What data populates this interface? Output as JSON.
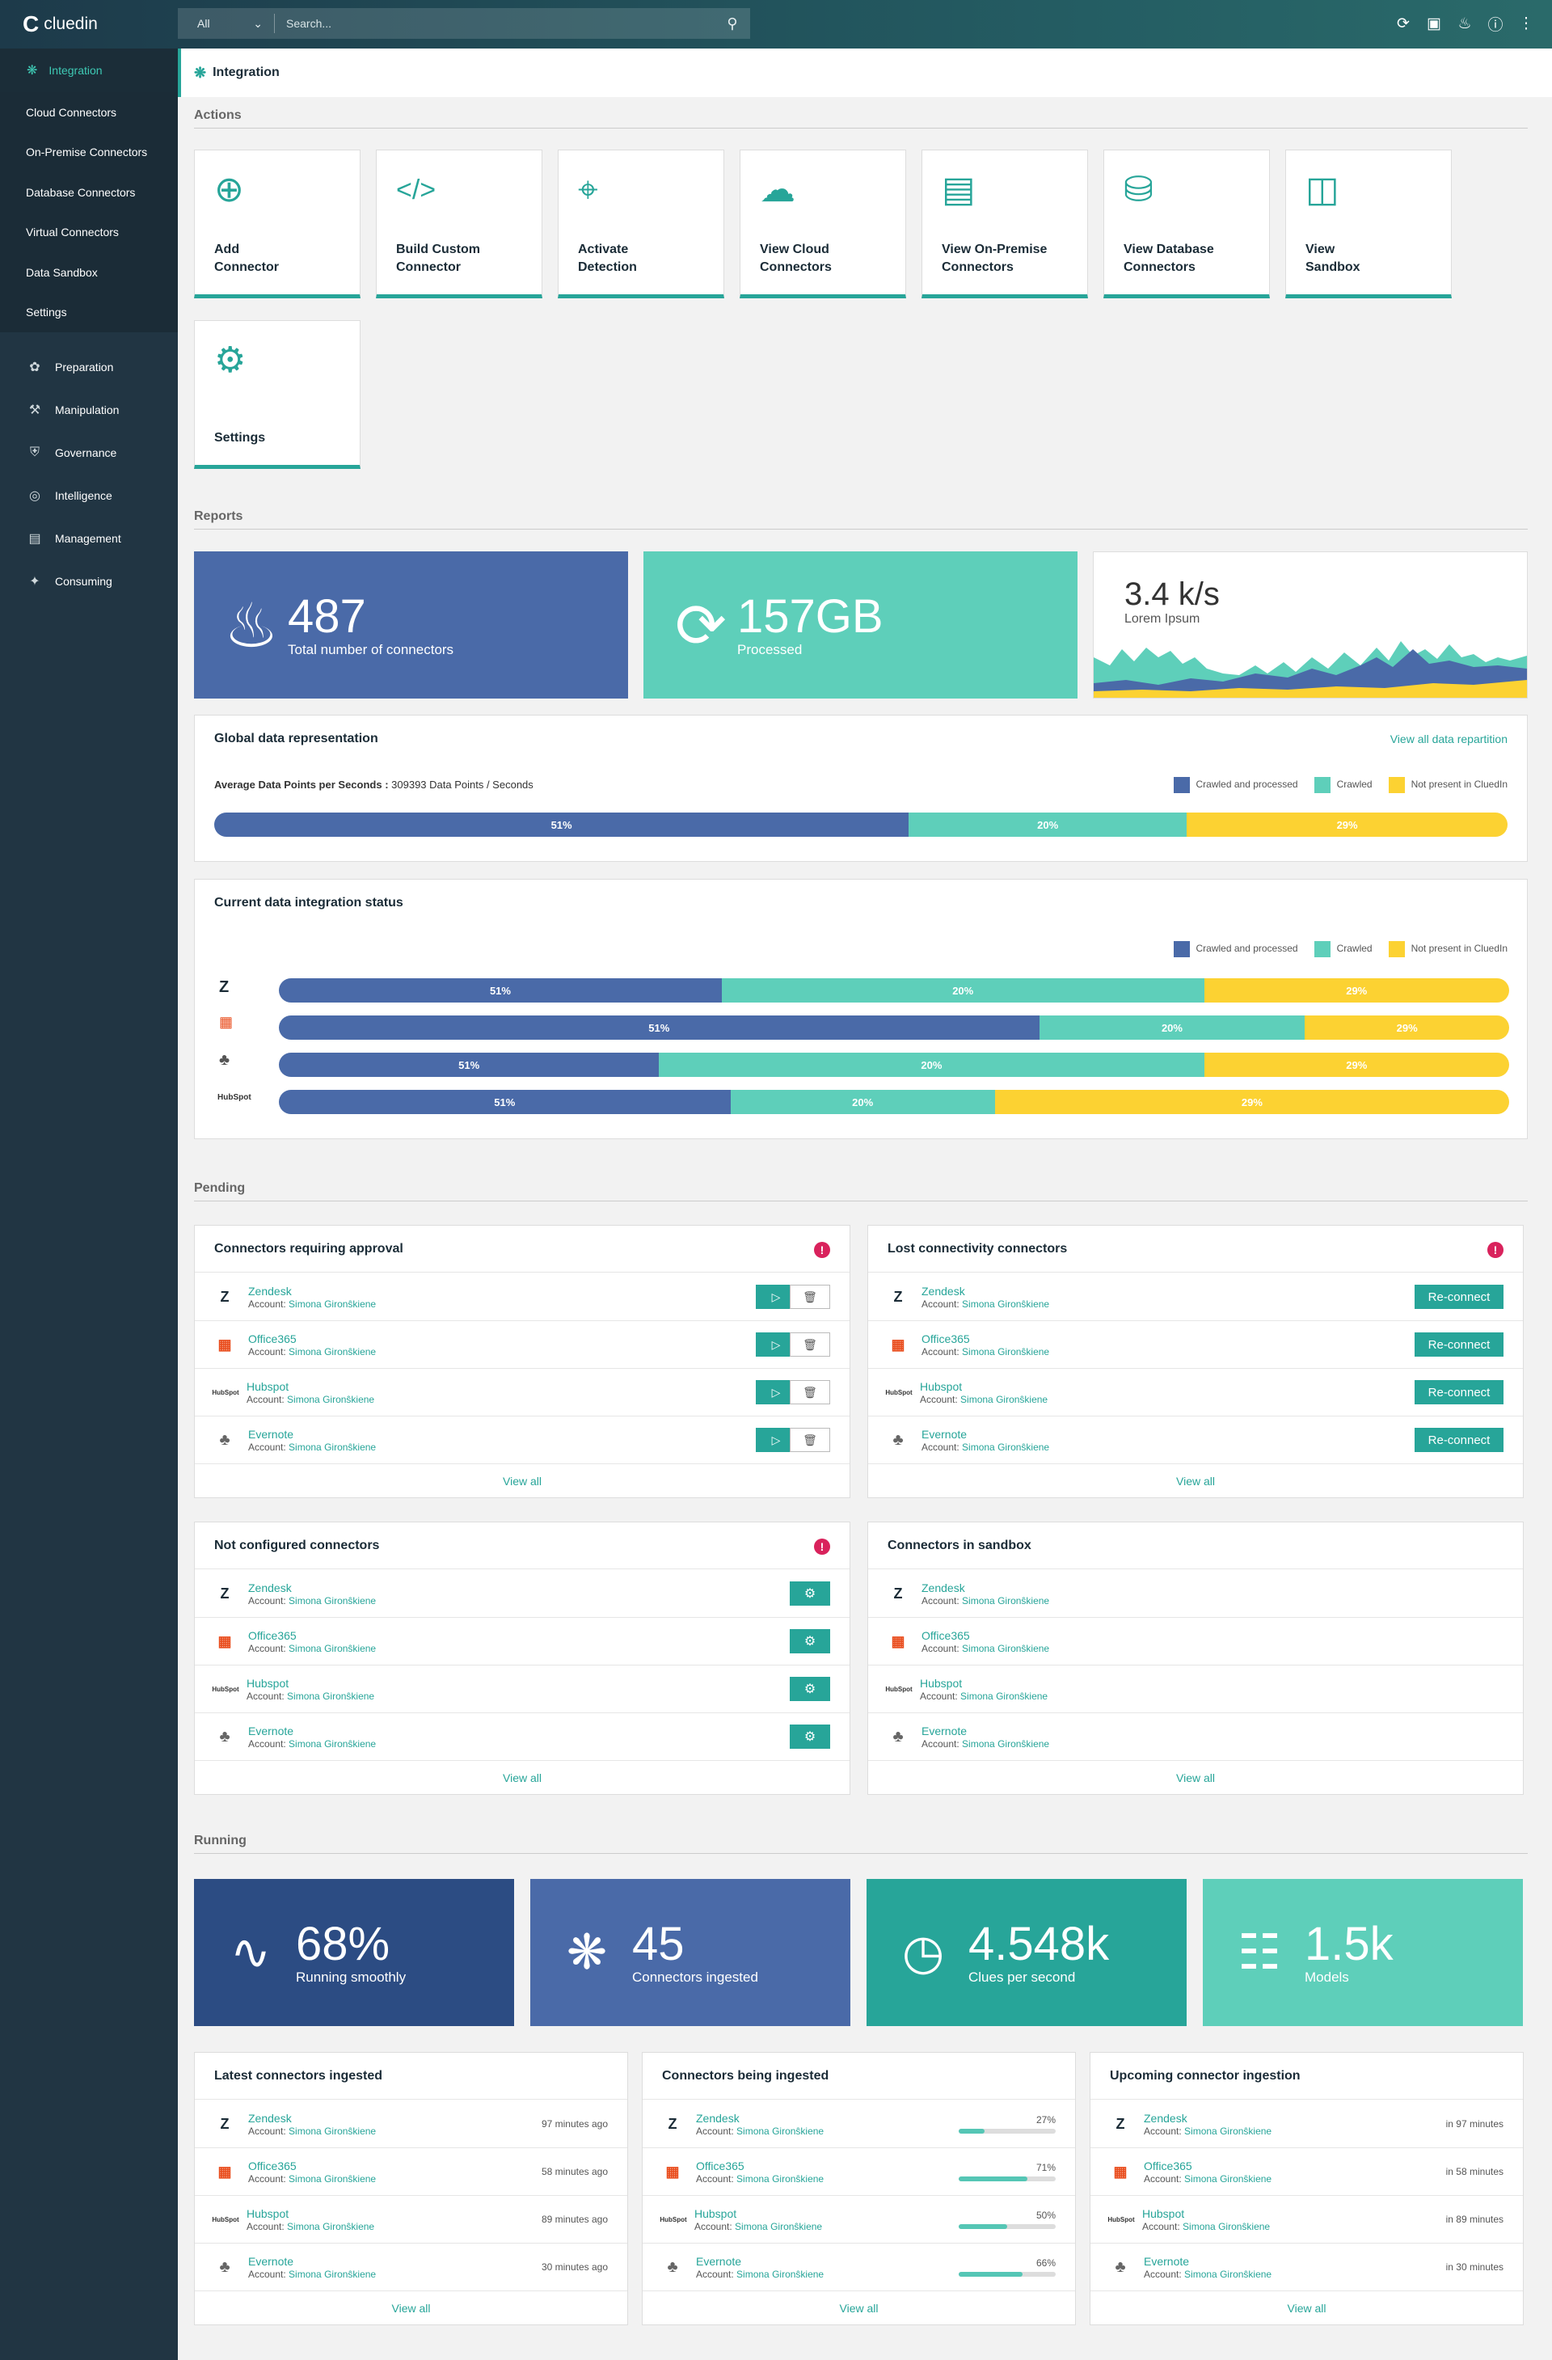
{
  "app": {
    "logo": "cluedin"
  },
  "search": {
    "scope": "All",
    "placeholder": "Search..."
  },
  "sidebar": {
    "active": "Integration",
    "sub": [
      "Cloud Connectors",
      "On-Premise Connectors",
      "Database Connectors",
      "Virtual Connectors",
      "Data Sandbox",
      "Settings"
    ],
    "items": [
      {
        "label": "Preparation",
        "icon": "preparation-icon"
      },
      {
        "label": "Manipulation",
        "icon": "manipulation-icon"
      },
      {
        "label": "Governance",
        "icon": "governance-icon"
      },
      {
        "label": "Intelligence",
        "icon": "intelligence-icon"
      },
      {
        "label": "Management",
        "icon": "management-icon"
      },
      {
        "label": "Consuming",
        "icon": "consuming-icon"
      }
    ]
  },
  "page": {
    "title": "Integration"
  },
  "sections": {
    "actions": "Actions",
    "reports": "Reports",
    "pending": "Pending",
    "running": "Running"
  },
  "actions": [
    {
      "l1": "Add",
      "l2": "Connector",
      "icon": "plus-circle-icon"
    },
    {
      "l1": "Build Custom",
      "l2": "Connector",
      "icon": "code-icon"
    },
    {
      "l1": "Activate",
      "l2": "Detection",
      "icon": "crosshair-icon"
    },
    {
      "l1": "View Cloud",
      "l2": "Connectors",
      "icon": "cloud-icon"
    },
    {
      "l1": "View On-Premise",
      "l2": "Connectors",
      "icon": "server-icon"
    },
    {
      "l1": "View Database",
      "l2": "Connectors",
      "icon": "database-icon"
    },
    {
      "l1": "View",
      "l2": "Sandbox",
      "icon": "sandbox-icon"
    },
    {
      "l1": "Settings",
      "l2": "",
      "icon": "gear-icon"
    }
  ],
  "reports": {
    "connectors": {
      "value": "487",
      "label": "Total number of connectors"
    },
    "processed": {
      "value": "157GB",
      "label": "Processed"
    },
    "speed": {
      "value": "3.4 k/s",
      "label": "Lorem Ipsum"
    }
  },
  "global": {
    "title": "Global data representation",
    "link": "View all data repartition",
    "avg_label": "Average Data Points per Seconds :",
    "avg_value": "309393 Data Points / Seconds",
    "legend": [
      "Crawled and processed",
      "Crawled",
      "Not present in CluedIn"
    ],
    "bar": [
      "51%",
      "20%",
      "29%"
    ]
  },
  "status": {
    "title": "Current data integration status",
    "legend": [
      "Crawled and processed",
      "Crawled",
      "Not present in CluedIn"
    ],
    "rows": [
      {
        "brand": "zendesk",
        "labels": [
          "51%",
          "20%",
          "29%"
        ]
      },
      {
        "brand": "office365",
        "labels": [
          "51%",
          "20%",
          "29%"
        ]
      },
      {
        "brand": "evernote",
        "labels": [
          "51%",
          "20%",
          "29%"
        ]
      },
      {
        "brand": "hubspot",
        "labels": [
          "51%",
          "20%",
          "29%"
        ]
      }
    ]
  },
  "connectors": [
    {
      "name": "Zendesk",
      "account": "Simona Gironŝkiene"
    },
    {
      "name": "Office365",
      "account": "Simona Gironŝkiene"
    },
    {
      "name": "Hubspot",
      "account": "Simona Gironŝkiene"
    },
    {
      "name": "Evernote",
      "account": "Simona Gironŝkiene"
    }
  ],
  "account_prefix": "Account:",
  "pending": {
    "approval": {
      "title": "Connectors requiring approval"
    },
    "lost": {
      "title": "Lost connectivity connectors",
      "button": "Re-connect"
    },
    "notconf": {
      "title": "Not configured connectors"
    },
    "sandbox": {
      "title": "Connectors in sandbox"
    },
    "view_all": "View all"
  },
  "running": {
    "tiles": [
      {
        "value": "68%",
        "label": "Running smoothly",
        "icon": "pulse-icon",
        "color": "#2c4c83"
      },
      {
        "value": "45",
        "label": "Connectors ingested",
        "icon": "ingest-icon",
        "color": "#4a6aa8"
      },
      {
        "value": "4.548k",
        "label": "Clues per second",
        "icon": "clock-icon",
        "color": "#27a599"
      },
      {
        "value": "1.5k",
        "label": "Models",
        "icon": "hierarchy-icon",
        "color": "#5ecfba"
      }
    ],
    "latest": {
      "title": "Latest connectors ingested",
      "times": [
        "97 minutes ago",
        "58 minutes ago",
        "89 minutes ago",
        "30 minutes ago"
      ]
    },
    "being": {
      "title": "Connectors being ingested",
      "progress": [
        27,
        71,
        50,
        66
      ],
      "labels": [
        "27%",
        "71%",
        "50%",
        "66%"
      ]
    },
    "upcoming": {
      "title": "Upcoming connector ingestion",
      "times": [
        "in 97 minutes",
        "in 58 minutes",
        "in 89 minutes",
        "in 30 minutes"
      ]
    }
  },
  "colors": {
    "teal": "#27a599",
    "blue": "#4a6aa8",
    "mint": "#5ecfba",
    "yellow": "#fcd232",
    "sidebar": "#213543"
  }
}
